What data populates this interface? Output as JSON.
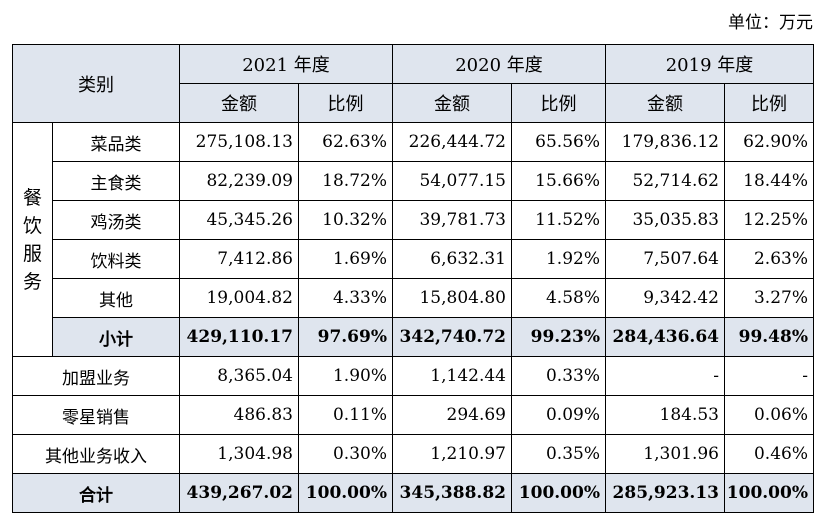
{
  "unit_label": "单位：万元",
  "header": {
    "category": "类别",
    "years": [
      "2021 年度",
      "2020 年度",
      "2019 年度"
    ],
    "amount": "金额",
    "ratio": "比例"
  },
  "group_label_chars": [
    "餐",
    "饮",
    "服",
    "务"
  ],
  "group_rows": [
    {
      "name": "菜品类",
      "y2021_amount": "275,108.13",
      "y2021_ratio": "62.63%",
      "y2020_amount": "226,444.72",
      "y2020_ratio": "65.56%",
      "y2019_amount": "179,836.12",
      "y2019_ratio": "62.90%"
    },
    {
      "name": "主食类",
      "y2021_amount": "82,239.09",
      "y2021_ratio": "18.72%",
      "y2020_amount": "54,077.15",
      "y2020_ratio": "15.66%",
      "y2019_amount": "52,714.62",
      "y2019_ratio": "18.44%"
    },
    {
      "name": "鸡汤类",
      "y2021_amount": "45,345.26",
      "y2021_ratio": "10.32%",
      "y2020_amount": "39,781.73",
      "y2020_ratio": "11.52%",
      "y2019_amount": "35,035.83",
      "y2019_ratio": "12.25%"
    },
    {
      "name": "饮料类",
      "y2021_amount": "7,412.86",
      "y2021_ratio": "1.69%",
      "y2020_amount": "6,632.31",
      "y2020_ratio": "1.92%",
      "y2019_amount": "7,507.64",
      "y2019_ratio": "2.63%"
    },
    {
      "name": "其他",
      "y2021_amount": "19,004.82",
      "y2021_ratio": "4.33%",
      "y2020_amount": "15,804.80",
      "y2020_ratio": "4.58%",
      "y2019_amount": "9,342.42",
      "y2019_ratio": "3.27%"
    }
  ],
  "subtotal": {
    "name": "小计",
    "y2021_amount": "429,110.17",
    "y2021_ratio": "97.69%",
    "y2020_amount": "342,740.72",
    "y2020_ratio": "99.23%",
    "y2019_amount": "284,436.64",
    "y2019_ratio": "99.48%"
  },
  "other_rows": [
    {
      "name": "加盟业务",
      "y2021_amount": "8,365.04",
      "y2021_ratio": "1.90%",
      "y2020_amount": "1,142.44",
      "y2020_ratio": "0.33%",
      "y2019_amount": "-",
      "y2019_ratio": "-"
    },
    {
      "name": "零星销售",
      "y2021_amount": "486.83",
      "y2021_ratio": "0.11%",
      "y2020_amount": "294.69",
      "y2020_ratio": "0.09%",
      "y2019_amount": "184.53",
      "y2019_ratio": "0.06%"
    },
    {
      "name": "其他业务收入",
      "y2021_amount": "1,304.98",
      "y2021_ratio": "0.30%",
      "y2020_amount": "1,210.97",
      "y2020_ratio": "0.35%",
      "y2019_amount": "1,301.96",
      "y2019_ratio": "0.46%"
    }
  ],
  "total": {
    "name": "合计",
    "y2021_amount": "439,267.02",
    "y2021_ratio": "100.00%",
    "y2020_amount": "345,388.82",
    "y2020_ratio": "100.00%",
    "y2019_amount": "285,923.13",
    "y2019_ratio": "100.00%"
  },
  "colors": {
    "header_bg": "#dfe5ee",
    "border": "#000000"
  }
}
